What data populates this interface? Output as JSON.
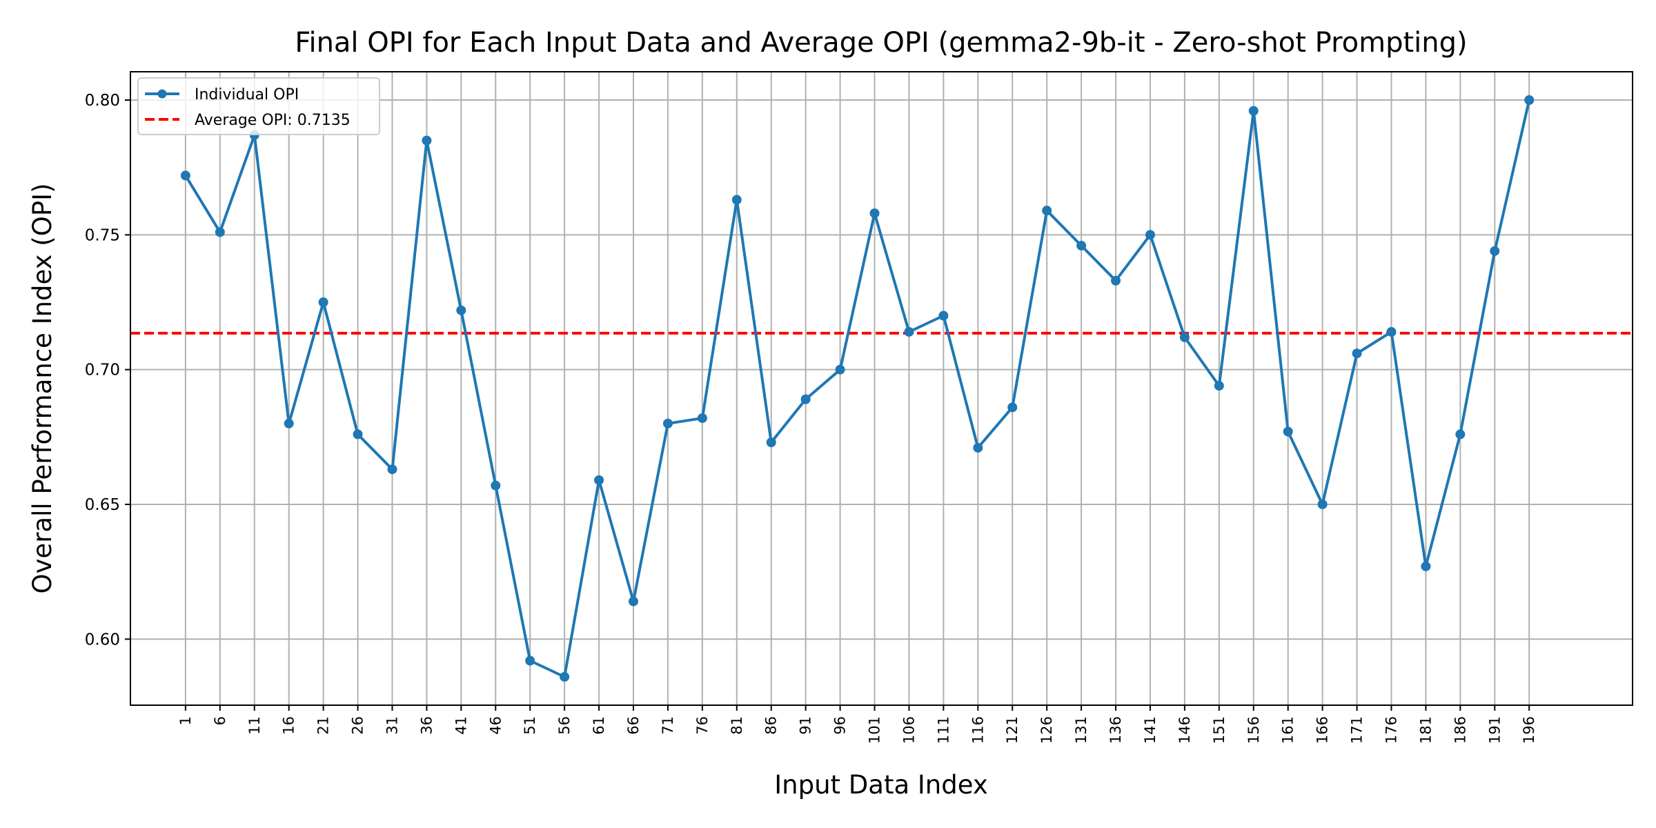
{
  "chart_data": {
    "type": "line",
    "title": "Final OPI for Each Input Data and Average OPI (gemma2-9b-it - Zero-shot Prompting)",
    "xlabel": "Input Data Index",
    "ylabel": "Overall Performance Index (OPI)",
    "x": [
      1,
      6,
      11,
      16,
      21,
      26,
      31,
      36,
      41,
      46,
      51,
      56,
      61,
      66,
      71,
      76,
      81,
      86,
      91,
      96,
      101,
      106,
      111,
      116,
      121,
      126,
      131,
      136,
      141,
      146,
      151,
      156,
      161,
      166,
      171,
      176,
      181,
      186,
      191,
      196
    ],
    "x_tick_labels": [
      "1",
      "6",
      "11",
      "16",
      "21",
      "26",
      "31",
      "36",
      "41",
      "46",
      "51",
      "56",
      "61",
      "66",
      "71",
      "76",
      "81",
      "86",
      "91",
      "96",
      "101",
      "106",
      "111",
      "116",
      "121",
      "126",
      "131",
      "136",
      "141",
      "146",
      "151",
      "156",
      "161",
      "166",
      "171",
      "176",
      "181",
      "186",
      "191",
      "196"
    ],
    "series": [
      {
        "name": "Individual OPI",
        "color": "#1f77b4",
        "values": [
          0.772,
          0.751,
          0.787,
          0.68,
          0.725,
          0.676,
          0.663,
          0.785,
          0.722,
          0.657,
          0.592,
          0.586,
          0.659,
          0.614,
          0.68,
          0.682,
          0.763,
          0.673,
          0.689,
          0.7,
          0.758,
          0.714,
          0.72,
          0.671,
          0.686,
          0.759,
          0.746,
          0.733,
          0.75,
          0.712,
          0.694,
          0.796,
          0.677,
          0.65,
          0.706,
          0.714,
          0.627,
          0.676,
          0.744,
          0.8
        ]
      }
    ],
    "average": {
      "name": "Average OPI: 0.7135",
      "value": 0.7135,
      "color": "#ff0000",
      "style": "dashed"
    },
    "xlim": [
      -7,
      211
    ],
    "ylim": [
      0.5755,
      0.8105
    ],
    "y_ticks": [
      0.6,
      0.65,
      0.7,
      0.75,
      0.8
    ],
    "y_tick_labels": [
      "0.60",
      "0.65",
      "0.70",
      "0.75",
      "0.80"
    ],
    "grid": true,
    "legend_position": "top-left"
  }
}
